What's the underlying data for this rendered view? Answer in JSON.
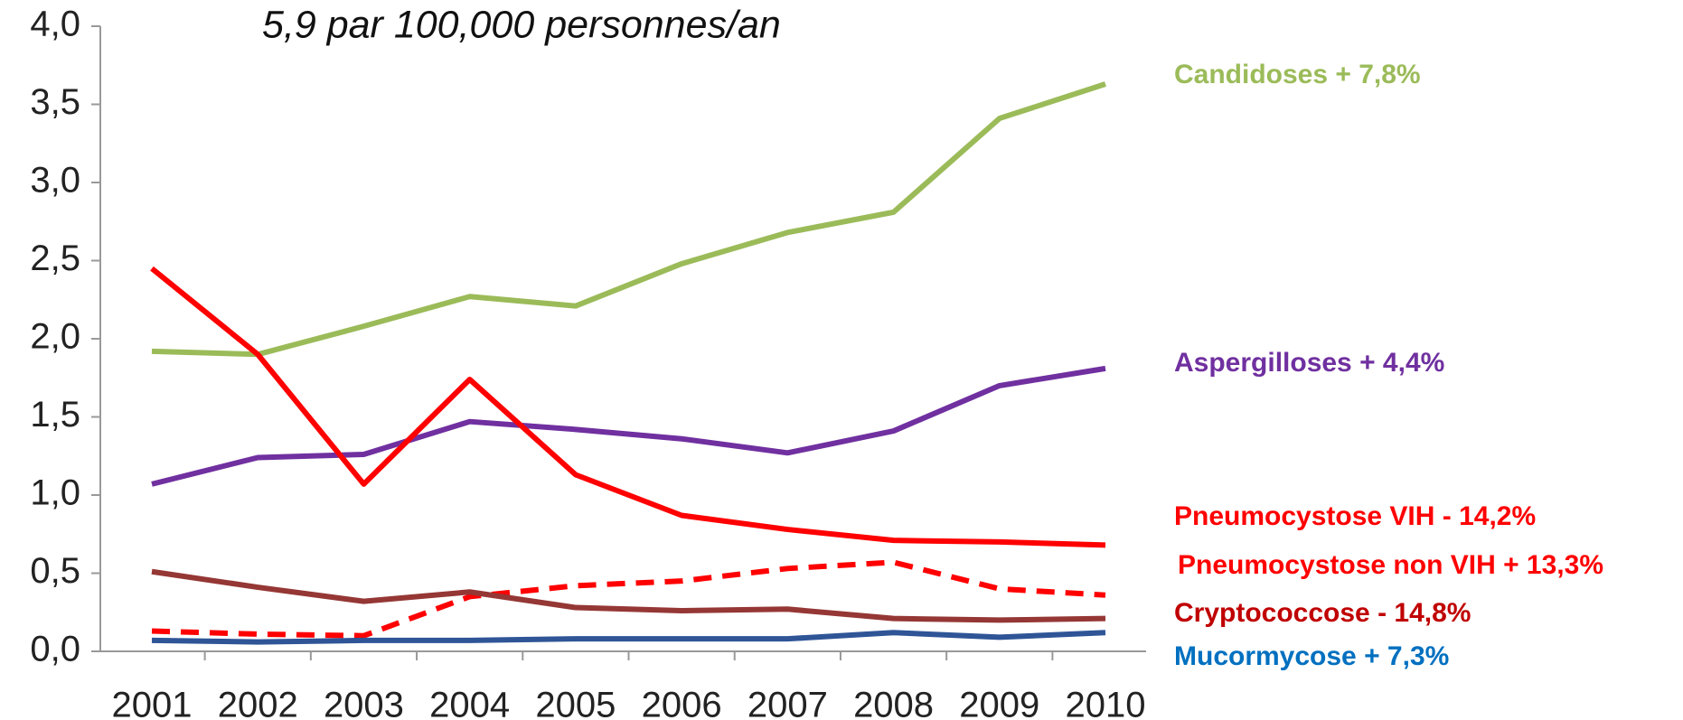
{
  "chart_data": {
    "type": "line",
    "title": "5,9 par 100,000 personnes/an",
    "categories": [
      "2001",
      "2002",
      "2003",
      "2004",
      "2005",
      "2006",
      "2007",
      "2008",
      "2009",
      "2010"
    ],
    "ylim": [
      0,
      4
    ],
    "yticks": [
      {
        "value": 0,
        "label": "0,0"
      },
      {
        "value": 0.5,
        "label": "0,5"
      },
      {
        "value": 1,
        "label": "1,0"
      },
      {
        "value": 1.5,
        "label": "1,5"
      },
      {
        "value": 2,
        "label": "2,0"
      },
      {
        "value": 2.5,
        "label": "2,5"
      },
      {
        "value": 3,
        "label": "3,0"
      },
      {
        "value": 3.5,
        "label": "3,5"
      },
      {
        "value": 4,
        "label": "4,0"
      }
    ],
    "series": [
      {
        "name": "Candidoses + 7,8%",
        "color": "#9bbb59",
        "dashed": false,
        "values": [
          1.92,
          1.9,
          2.08,
          2.27,
          2.21,
          2.48,
          2.68,
          2.81,
          3.41,
          3.63
        ]
      },
      {
        "name": "Aspergilloses + 4,4%",
        "color": "#7030a0",
        "dashed": false,
        "values": [
          1.07,
          1.24,
          1.26,
          1.47,
          1.42,
          1.36,
          1.27,
          1.41,
          1.7,
          1.81
        ]
      },
      {
        "name": "Pneumocystose VIH - 14,2%",
        "color": "#ff0000",
        "dashed": false,
        "values": [
          2.45,
          1.9,
          1.07,
          1.74,
          1.13,
          0.87,
          0.78,
          0.71,
          0.7,
          0.68
        ]
      },
      {
        "name": "Pneumocystose non VIH + 13,3%",
        "color": "#ff0000",
        "dashed": true,
        "values": [
          0.13,
          0.11,
          0.1,
          0.35,
          0.42,
          0.45,
          0.53,
          0.57,
          0.4,
          0.36
        ]
      },
      {
        "name": "Cryptococcose - 14,8%",
        "color": "#953735",
        "label_color": "#c00000",
        "dashed": false,
        "values": [
          0.51,
          0.41,
          0.32,
          0.38,
          0.28,
          0.26,
          0.27,
          0.21,
          0.2,
          0.21
        ]
      },
      {
        "name": "Mucormycose + 7,3%",
        "color": "#2f5597",
        "label_color": "#0070c0",
        "dashed": false,
        "values": [
          0.07,
          0.06,
          0.07,
          0.07,
          0.08,
          0.08,
          0.08,
          0.12,
          0.09,
          0.12
        ]
      }
    ]
  }
}
